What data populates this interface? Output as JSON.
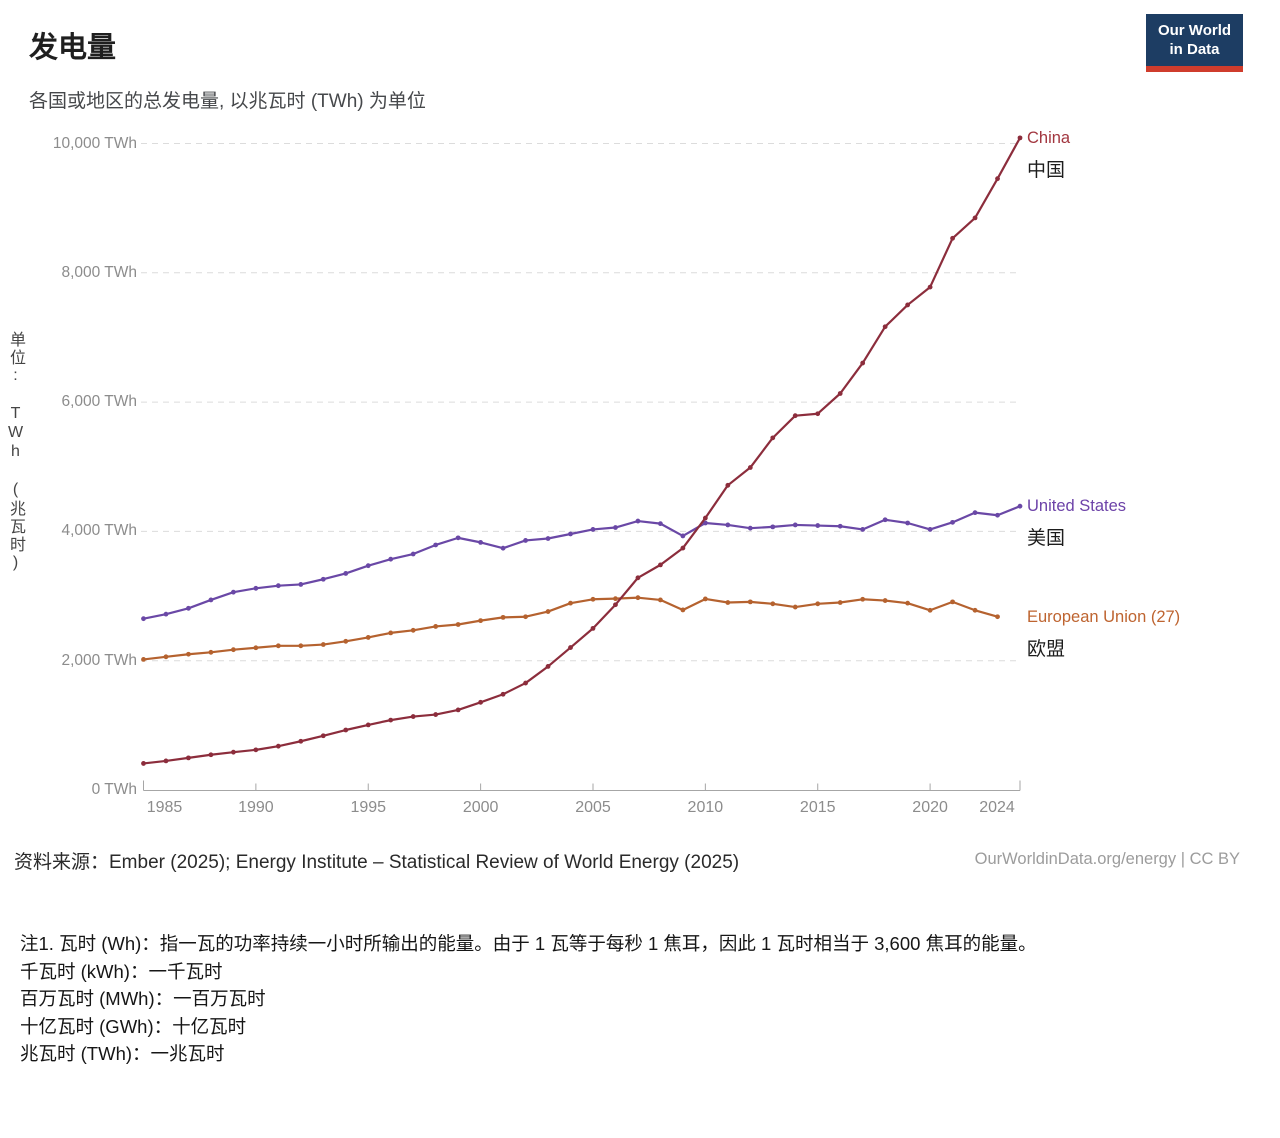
{
  "header": {
    "title": "发电量",
    "subtitle": "各国或地区的总发电量, 以兆瓦时 (TWh) 为单位"
  },
  "logo": {
    "line1": "Our World",
    "line2": "in Data",
    "bg_color": "#1d3d63",
    "accent_color": "#cf3c2c"
  },
  "chart_data": {
    "type": "line",
    "title": "发电量",
    "ylabel": "单位: TWh (兆瓦时)",
    "unit": "TWh",
    "xlim": [
      1985,
      2024
    ],
    "ylim": [
      0,
      10000
    ],
    "x_ticks": [
      1985,
      1990,
      1995,
      2000,
      2005,
      2010,
      2015,
      2020,
      2024
    ],
    "y_ticks": [
      0,
      2000,
      4000,
      6000,
      8000,
      10000
    ],
    "y_tick_suffix": " TWh",
    "grid": "horizontal-dashed",
    "legend_position": "right-of-line-ends",
    "x_start_year": 1985,
    "series": [
      {
        "name": "China",
        "name_zh": "中国",
        "color": "#8C2D3C",
        "label_color": "#A2363F",
        "end_year": 2024,
        "values": [
          411,
          450,
          497,
          545,
          585,
          621,
          678,
          754,
          839,
          928,
          1007,
          1081,
          1136,
          1167,
          1239,
          1356,
          1481,
          1654,
          1911,
          2203,
          2500,
          2866,
          3282,
          3482,
          3742,
          4207,
          4713,
          4988,
          5447,
          5790,
          5820,
          6133,
          6604,
          7166,
          7503,
          7779,
          8534,
          8849,
          9456,
          10087
        ]
      },
      {
        "name": "United States",
        "name_zh": "美国",
        "color": "#6A48A6",
        "label_color": "#6D43A8",
        "end_year": 2024,
        "values": [
          2650,
          2720,
          2810,
          2940,
          3060,
          3120,
          3160,
          3180,
          3260,
          3350,
          3470,
          3570,
          3650,
          3790,
          3900,
          3830,
          3740,
          3860,
          3890,
          3960,
          4030,
          4060,
          4160,
          4120,
          3930,
          4130,
          4100,
          4050,
          4070,
          4100,
          4090,
          4080,
          4030,
          4180,
          4130,
          4030,
          4140,
          4290,
          4250,
          4390
        ]
      },
      {
        "name": "European Union (27)",
        "name_zh": "欧盟",
        "color": "#B5622F",
        "label_color": "#BE6430",
        "end_year": 2023,
        "values": [
          2020,
          2060,
          2100,
          2130,
          2170,
          2200,
          2230,
          2230,
          2250,
          2300,
          2360,
          2430,
          2470,
          2530,
          2560,
          2620,
          2670,
          2680,
          2760,
          2890,
          2950,
          2960,
          2975,
          2940,
          2785,
          2955,
          2900,
          2910,
          2880,
          2830,
          2880,
          2900,
          2950,
          2930,
          2890,
          2780,
          2910,
          2780,
          2680
        ]
      }
    ]
  },
  "footer": {
    "source": "资料来源：Ember (2025); Energy Institute – Statistical Review of World Energy (2025)",
    "credit": "OurWorldinData.org/energy | CC BY",
    "notes": [
      "注1. 瓦时 (Wh)：指一瓦的功率持续一小时所输出的能量。由于 1 瓦等于每秒 1 焦耳，因此 1 瓦时相当于 3,600 焦耳的能量。",
      "千瓦时 (kWh)：一千瓦时",
      "百万瓦时 (MWh)：一百万瓦时",
      "十亿瓦时 (GWh)：十亿瓦时",
      "兆瓦时 (TWh)：一兆瓦时"
    ]
  }
}
